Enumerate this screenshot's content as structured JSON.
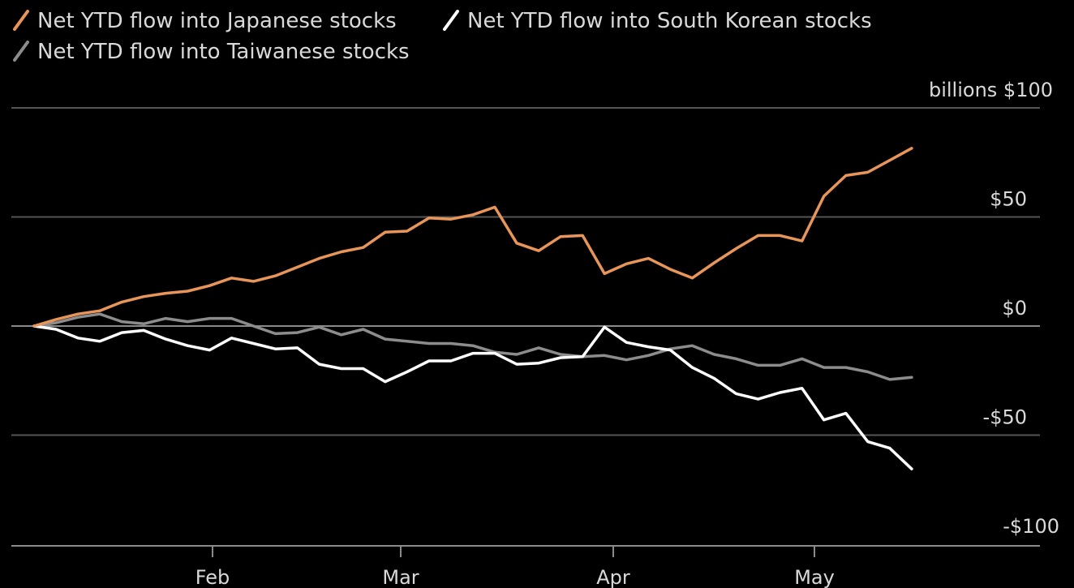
{
  "chart_data": {
    "type": "line",
    "title": "",
    "xlabel": "",
    "ylabel": "billions",
    "y_unit_label": "billions",
    "ylim": [
      -100,
      100
    ],
    "y_ticks": [
      {
        "value": 100,
        "label": "$100"
      },
      {
        "value": 50,
        "label": "$50"
      },
      {
        "value": 0,
        "label": "$0"
      },
      {
        "value": -50,
        "label": "-$50"
      },
      {
        "value": -100,
        "label": "-$100"
      }
    ],
    "x_ticks": [
      {
        "index": 8,
        "label": "Feb"
      },
      {
        "index": 17,
        "label": "Mar"
      },
      {
        "index": 27,
        "label": "Apr"
      },
      {
        "index": 36,
        "label": "May"
      }
    ],
    "x_count": 43,
    "grid": true,
    "legend_position": "top-left",
    "series": [
      {
        "name": "Net YTD flow into Japanese stocks",
        "color": "#e8955a",
        "values": [
          0,
          3,
          5.5,
          7,
          11,
          13.5,
          15,
          16,
          18.5,
          22,
          20.5,
          23,
          27,
          31,
          34,
          36,
          43,
          43.5,
          49.5,
          49,
          51,
          54.5,
          38,
          34.5,
          41,
          41.5,
          24,
          28.5,
          31,
          26,
          22,
          29,
          35.5,
          41.5,
          41.5,
          39,
          59.5,
          69,
          70.5,
          76,
          81.5
        ]
      },
      {
        "name": "Net YTD flow into South Korean stocks",
        "color": "#ffffff",
        "values": [
          0,
          -1.5,
          -5.5,
          -7,
          -3,
          -2,
          -6,
          -9,
          -11,
          -5.5,
          -8,
          -10.5,
          -10,
          -17.5,
          -19.5,
          -19.5,
          -25.5,
          -21,
          -16,
          -16,
          -12.5,
          -12.5,
          -17.5,
          -17,
          -14.5,
          -14,
          -0.5,
          -7.5,
          -9.5,
          -11,
          -19,
          -24,
          -31,
          -33.5,
          -30.5,
          -28.5,
          -43,
          -40,
          -53,
          -56,
          -65.5
        ]
      },
      {
        "name": "Net YTD flow into Taiwanese stocks",
        "color": "#8c8c8c",
        "values": [
          0,
          1.5,
          4,
          5.5,
          2,
          1,
          3.5,
          2,
          3.5,
          3.5,
          0,
          -3.5,
          -3,
          -0.5,
          -4,
          -1.5,
          -6,
          -7,
          -8,
          -8,
          -9,
          -12,
          -13,
          -10,
          -13,
          -14,
          -13.5,
          -15.5,
          -13.5,
          -10.5,
          -9,
          -13,
          -15,
          -18,
          -18,
          -15,
          -19,
          -19,
          -21,
          -24.5,
          -23.5
        ]
      }
    ]
  }
}
